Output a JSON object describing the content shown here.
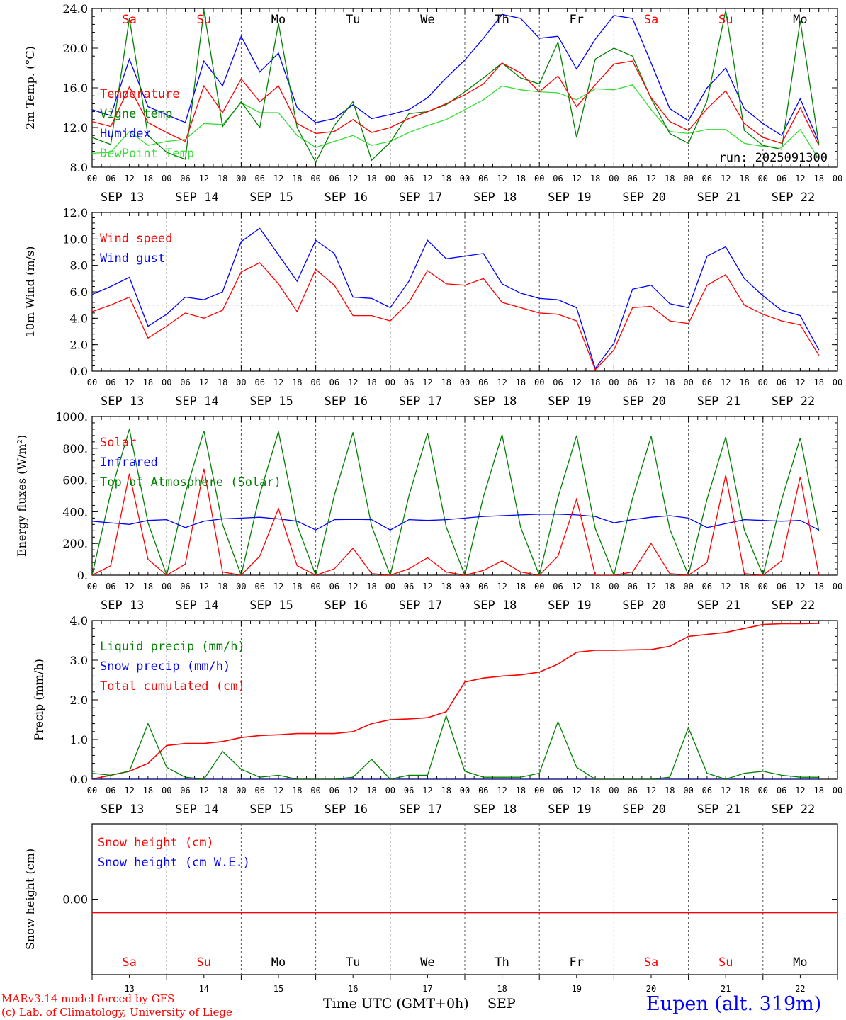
{
  "run_label": "run: 2025091300",
  "footer": {
    "model": "MARv3.14 model forced by GFS",
    "credit": "(c) Lab. of Climatology, University of Liege",
    "xlabel": "Time UTC (GMT+0h)",
    "month": "SEP",
    "station": "Eupen (alt. 319m)"
  },
  "days": {
    "dates": [
      "SEP 13",
      "SEP 14",
      "SEP 15",
      "SEP 16",
      "SEP 17",
      "SEP 18",
      "SEP 19",
      "SEP 20",
      "SEP 21",
      "SEP 22"
    ],
    "names": [
      "Sa",
      "Su",
      "Mo",
      "Tu",
      "We",
      "Th",
      "Fr",
      "Sa",
      "Su",
      "Mo"
    ],
    "numbers": [
      "13",
      "14",
      "15",
      "16",
      "17",
      "18",
      "19",
      "20",
      "21",
      "22"
    ],
    "weekend": [
      true,
      true,
      false,
      false,
      false,
      false,
      false,
      true,
      true,
      false
    ],
    "hour_labels": [
      "00",
      "06",
      "12",
      "18"
    ],
    "final_label": "00"
  },
  "colors": {
    "red": "#ff0000",
    "green": "#008000",
    "blue": "#0000ff",
    "lightgreen": "#33dd33",
    "grid": "#555555"
  },
  "chart_data": [
    {
      "type": "line",
      "ylabel": "2m Temp. (°C)",
      "ylim": [
        8,
        24
      ],
      "yticks": [
        "8.0",
        "12.0",
        "16.0",
        "20.0",
        "24.0"
      ],
      "x_hours_from_start": [
        0,
        6,
        12,
        18,
        24,
        30,
        36,
        42,
        48,
        54,
        60,
        66,
        72,
        78,
        84,
        90,
        96,
        102,
        108,
        114,
        120,
        126,
        132,
        138,
        144,
        150,
        156,
        162,
        168,
        174,
        180,
        186,
        192,
        198,
        204,
        210,
        216,
        222,
        228,
        234
      ],
      "series": [
        {
          "name": "Temperature",
          "color": "#ff0000",
          "values": [
            12.6,
            12.1,
            16.1,
            12.5,
            11.5,
            10.6,
            16.2,
            13.5,
            16.9,
            14.6,
            16.2,
            12.4,
            11.4,
            11.6,
            12.8,
            11.5,
            12.0,
            12.9,
            13.6,
            14.4,
            15.3,
            16.4,
            18.5,
            17.5,
            15.6,
            17.2,
            14.1,
            16.3,
            18.4,
            18.7,
            15.0,
            12.6,
            11.7,
            13.9,
            15.7,
            12.4,
            11.0,
            10.4,
            14.0,
            10.2
          ]
        },
        {
          "name": "Vigne temp",
          "color": "#008000",
          "values": [
            11.0,
            10.3,
            23.0,
            11.2,
            9.5,
            8.8,
            23.8,
            12.1,
            14.6,
            12.0,
            22.5,
            12.0,
            8.5,
            12.2,
            14.6,
            8.7,
            10.5,
            13.4,
            13.6,
            14.3,
            15.6,
            17.0,
            18.5,
            17.0,
            16.4,
            20.6,
            11.0,
            18.9,
            20.0,
            19.2,
            14.9,
            11.4,
            10.4,
            14.7,
            23.8,
            11.7,
            10.2,
            9.8,
            22.8,
            10.3
          ]
        },
        {
          "name": "Humidex",
          "color": "#0000ff",
          "values": [
            13.8,
            13.2,
            18.9,
            14.1,
            13.3,
            12.5,
            18.7,
            16.2,
            21.2,
            17.6,
            19.5,
            14.0,
            12.5,
            12.9,
            14.3,
            12.9,
            13.3,
            13.8,
            15.0,
            17.0,
            18.8,
            21.0,
            23.4,
            23.0,
            21.0,
            21.2,
            17.9,
            20.9,
            23.3,
            23.0,
            18.5,
            13.9,
            12.7,
            16.0,
            18.0,
            13.9,
            12.4,
            11.2,
            14.9,
            10.5
          ]
        },
        {
          "name": "DewPoint Temp",
          "color": "#33dd33",
          "values": [
            9.4,
            9.5,
            11.6,
            10.2,
            10.6,
            10.8,
            12.4,
            12.3,
            14.5,
            13.5,
            13.5,
            11.2,
            10.0,
            10.6,
            11.2,
            10.2,
            10.6,
            11.5,
            12.2,
            12.8,
            13.8,
            14.8,
            16.2,
            15.8,
            15.6,
            15.5,
            14.8,
            15.9,
            15.8,
            16.3,
            13.8,
            11.6,
            11.4,
            11.8,
            11.8,
            10.4,
            10.1,
            10.0,
            11.8,
            8.8
          ]
        }
      ]
    },
    {
      "type": "line",
      "ylabel": "10m Wind (m/s)",
      "ylim": [
        0,
        12
      ],
      "yticks": [
        "0.0",
        "2.0",
        "4.0",
        "6.0",
        "8.0",
        "10.0",
        "12.0"
      ],
      "reference_line": 5,
      "x_hours_from_start": [
        0,
        6,
        12,
        18,
        24,
        30,
        36,
        42,
        48,
        54,
        60,
        66,
        72,
        78,
        84,
        90,
        96,
        102,
        108,
        114,
        120,
        126,
        132,
        138,
        144,
        150,
        156,
        162,
        168,
        174,
        180,
        186,
        192,
        198,
        204,
        210,
        216,
        222,
        228,
        234
      ],
      "series": [
        {
          "name": "Wind speed",
          "color": "#ff0000",
          "values": [
            4.5,
            5.0,
            5.6,
            2.5,
            3.4,
            4.4,
            4.0,
            4.6,
            7.5,
            8.2,
            6.6,
            4.5,
            7.7,
            6.5,
            4.2,
            4.2,
            3.8,
            5.2,
            7.6,
            6.6,
            6.5,
            7.0,
            5.2,
            4.8,
            4.4,
            4.3,
            3.8,
            0.1,
            1.6,
            4.8,
            4.9,
            3.8,
            3.6,
            6.5,
            7.3,
            5.0,
            4.3,
            3.8,
            3.5,
            1.2
          ]
        },
        {
          "name": "Wind gust",
          "color": "#0000ff",
          "values": [
            5.8,
            6.4,
            7.1,
            3.4,
            4.3,
            5.6,
            5.4,
            6.0,
            9.8,
            10.8,
            8.8,
            6.8,
            9.9,
            8.9,
            5.6,
            5.5,
            4.8,
            6.8,
            9.9,
            8.5,
            8.7,
            8.9,
            6.6,
            5.9,
            5.5,
            5.4,
            4.8,
            0.2,
            2.1,
            6.2,
            6.5,
            5.1,
            4.8,
            8.7,
            9.4,
            7.0,
            5.7,
            4.6,
            4.2,
            1.6
          ]
        }
      ]
    },
    {
      "type": "line",
      "ylabel": "Energy fluxes (W/m²)",
      "ylim": [
        0,
        1000
      ],
      "yticks": [
        "0.",
        "200.",
        "400.",
        "600.",
        "800.",
        "1000."
      ],
      "x_hours_from_start": [
        0,
        6,
        12,
        18,
        24,
        30,
        36,
        42,
        48,
        54,
        60,
        66,
        72,
        78,
        84,
        90,
        96,
        102,
        108,
        114,
        120,
        126,
        132,
        138,
        144,
        150,
        156,
        162,
        168,
        174,
        180,
        186,
        192,
        198,
        204,
        210,
        216,
        222,
        228,
        234
      ],
      "series": [
        {
          "name": "Solar",
          "color": "#ff0000",
          "values": [
            0,
            60,
            640,
            100,
            0,
            70,
            670,
            20,
            0,
            120,
            420,
            60,
            0,
            40,
            170,
            10,
            0,
            40,
            110,
            20,
            0,
            30,
            90,
            20,
            0,
            120,
            480,
            0,
            0,
            20,
            200,
            10,
            0,
            80,
            630,
            10,
            0,
            90,
            620,
            0
          ]
        },
        {
          "name": "Infrared",
          "color": "#0000ff",
          "values": [
            340,
            330,
            320,
            345,
            350,
            300,
            340,
            355,
            360,
            365,
            355,
            340,
            285,
            350,
            352,
            350,
            285,
            350,
            345,
            350,
            360,
            370,
            375,
            380,
            385,
            385,
            380,
            370,
            330,
            350,
            365,
            375,
            360,
            300,
            325,
            350,
            345,
            340,
            345,
            285
          ]
        },
        {
          "name": "Top of Atmosphere (Solar)",
          "color": "#008000",
          "values": [
            0,
            520,
            920,
            330,
            0,
            515,
            910,
            320,
            0,
            510,
            905,
            315,
            0,
            505,
            900,
            310,
            0,
            500,
            895,
            305,
            0,
            495,
            885,
            300,
            0,
            490,
            880,
            295,
            0,
            485,
            875,
            290,
            0,
            480,
            870,
            285,
            0,
            475,
            865,
            280
          ]
        }
      ]
    },
    {
      "type": "line",
      "ylabel": "Precip (mm/h)",
      "ylim": [
        0,
        4
      ],
      "yticks": [
        "0.0",
        "1.0",
        "2.0",
        "3.0",
        "4.0"
      ],
      "x_hours_from_start": [
        0,
        6,
        12,
        18,
        24,
        30,
        36,
        42,
        48,
        54,
        60,
        66,
        72,
        78,
        84,
        90,
        96,
        102,
        108,
        114,
        120,
        126,
        132,
        138,
        144,
        150,
        156,
        162,
        168,
        174,
        180,
        186,
        192,
        198,
        204,
        210,
        216,
        222,
        228,
        234
      ],
      "series": [
        {
          "name": "Liquid precip (mm/h)",
          "color": "#008000",
          "values": [
            0.15,
            0.1,
            0.2,
            1.4,
            0.3,
            0.05,
            0.0,
            0.7,
            0.25,
            0.05,
            0.1,
            0.0,
            0.0,
            0.0,
            0.05,
            0.5,
            0.0,
            0.1,
            0.1,
            1.6,
            0.2,
            0.05,
            0.05,
            0.05,
            0.15,
            1.45,
            0.3,
            0.0,
            0.0,
            0.0,
            0.0,
            0.05,
            1.3,
            0.15,
            0.0,
            0.15,
            0.2,
            0.1,
            0.05,
            0.05
          ]
        },
        {
          "name": "Snow precip (mm/h)",
          "color": "#0000ff",
          "values": [
            0,
            0,
            0,
            0,
            0,
            0,
            0,
            0,
            0,
            0,
            0,
            0,
            0,
            0,
            0,
            0,
            0,
            0,
            0,
            0,
            0,
            0,
            0,
            0,
            0,
            0,
            0,
            0,
            0,
            0,
            0,
            0,
            0,
            0,
            0,
            0,
            0,
            0,
            0,
            0
          ]
        },
        {
          "name": "Total cumulated (cm)",
          "color": "#ff0000",
          "values": [
            0.0,
            0.1,
            0.2,
            0.4,
            0.85,
            0.9,
            0.9,
            0.95,
            1.05,
            1.1,
            1.12,
            1.15,
            1.15,
            1.15,
            1.2,
            1.4,
            1.5,
            1.52,
            1.55,
            1.7,
            2.45,
            2.55,
            2.6,
            2.63,
            2.7,
            2.9,
            3.2,
            3.25,
            3.25,
            3.26,
            3.27,
            3.35,
            3.6,
            3.65,
            3.7,
            3.8,
            3.9,
            3.92,
            3.92,
            3.93
          ]
        }
      ]
    },
    {
      "type": "line",
      "ylabel": "Snow height (cm)",
      "yticks": [
        "0.00"
      ],
      "x_hours_from_start": [
        0,
        240
      ],
      "series": [
        {
          "name": "Snow height (cm)",
          "color": "#ff0000",
          "values": [
            0,
            0
          ]
        },
        {
          "name": "Snow height (cm W.E.)",
          "color": "#0000ff",
          "values": [
            0,
            0
          ]
        }
      ]
    }
  ]
}
